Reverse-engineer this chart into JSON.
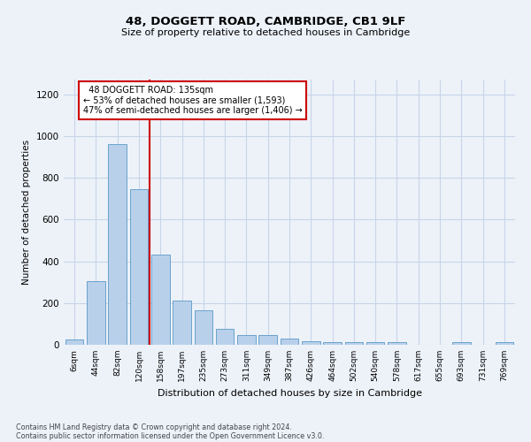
{
  "title_line1": "48, DOGGETT ROAD, CAMBRIDGE, CB1 9LF",
  "title_line2": "Size of property relative to detached houses in Cambridge",
  "xlabel": "Distribution of detached houses by size in Cambridge",
  "ylabel": "Number of detached properties",
  "bin_labels": [
    "6sqm",
    "44sqm",
    "82sqm",
    "120sqm",
    "158sqm",
    "197sqm",
    "235sqm",
    "273sqm",
    "311sqm",
    "349sqm",
    "387sqm",
    "426sqm",
    "464sqm",
    "502sqm",
    "540sqm",
    "578sqm",
    "617sqm",
    "655sqm",
    "693sqm",
    "731sqm",
    "769sqm"
  ],
  "bar_heights": [
    25,
    305,
    960,
    745,
    430,
    210,
    165,
    75,
    48,
    48,
    30,
    18,
    12,
    12,
    12,
    12,
    0,
    0,
    12,
    0,
    12
  ],
  "bar_color": "#b8d0ea",
  "bar_edge_color": "#6ba3cc",
  "grid_color": "#c8d4e8",
  "vline_x": 3.5,
  "vline_color": "#cc0000",
  "annotation_text": "  48 DOGGETT ROAD: 135sqm\n← 53% of detached houses are smaller (1,593)\n47% of semi-detached houses are larger (1,406) →",
  "annotation_box_color": "#ffffff",
  "annotation_box_edge": "#cc0000",
  "ylim": [
    0,
    1270
  ],
  "yticks": [
    0,
    200,
    400,
    600,
    800,
    1000,
    1200
  ],
  "footer_line1": "Contains HM Land Registry data © Crown copyright and database right 2024.",
  "footer_line2": "Contains public sector information licensed under the Open Government Licence v3.0.",
  "bg_color": "#edf2f9"
}
